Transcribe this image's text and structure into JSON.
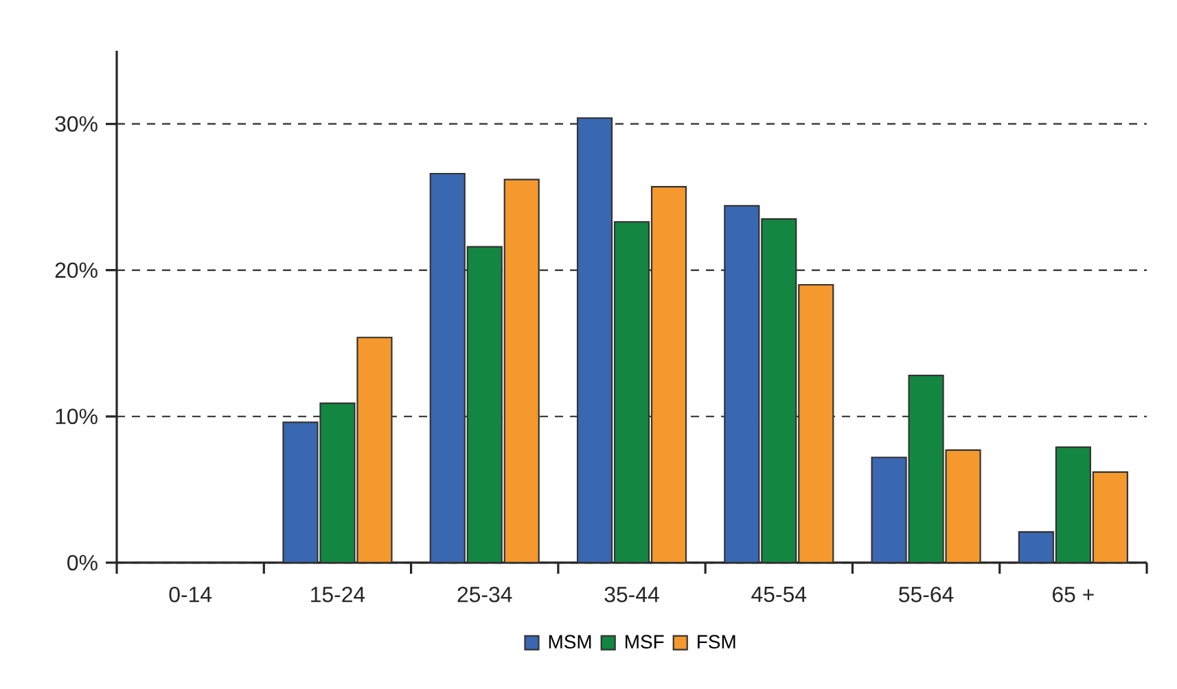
{
  "chart_data": {
    "type": "bar",
    "categories": [
      "0-14",
      "15-24",
      "25-34",
      "35-44",
      "45-54",
      "55-64",
      "65 +"
    ],
    "series": [
      {
        "name": "MSM",
        "color": "#3a67b1",
        "values": [
          0,
          9.6,
          26.6,
          30.4,
          24.4,
          7.2,
          2.1
        ]
      },
      {
        "name": "MSF",
        "color": "#138741",
        "values": [
          0,
          10.9,
          21.6,
          23.3,
          23.5,
          12.8,
          7.9
        ]
      },
      {
        "name": "FSM",
        "color": "#f5992e",
        "values": [
          0,
          15.4,
          26.2,
          25.7,
          19.0,
          7.7,
          6.2
        ]
      }
    ],
    "ylim": [
      0,
      35
    ],
    "yticks": [
      {
        "value": 0,
        "label": "0%"
      },
      {
        "value": 10,
        "label": "10%"
      },
      {
        "value": 20,
        "label": "20%"
      },
      {
        "value": 30,
        "label": "30%"
      }
    ],
    "grid": "y",
    "legend": "bottom"
  }
}
